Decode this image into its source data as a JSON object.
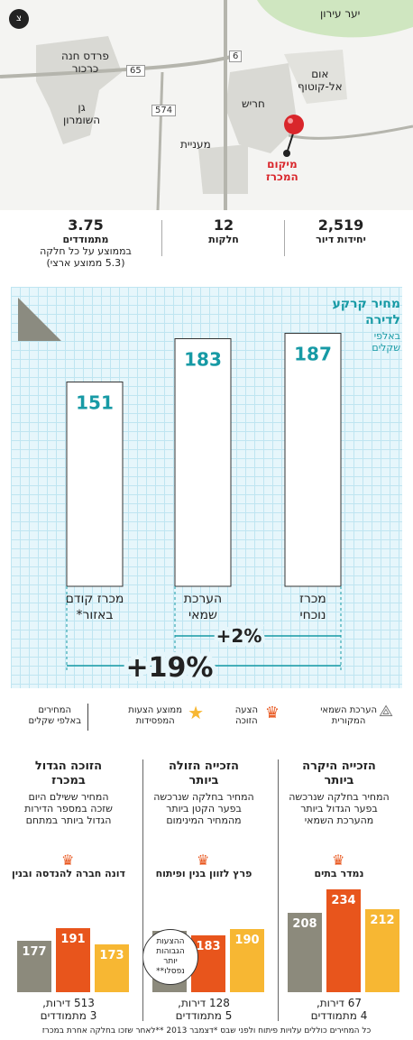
{
  "map": {
    "labels": {
      "forest": "יער עירון",
      "pardes": "פרדס חנה\nכרכור",
      "gan": "גן\nהשומרון",
      "umm": "אום\nאל-קוטוף",
      "harish": "חריש",
      "mania": "מעניית",
      "site": "מיקום\nהמכרז"
    },
    "roads": [
      "65",
      "6",
      "574"
    ]
  },
  "stats": [
    {
      "num": "2,519",
      "label": "יחידות דיור",
      "sub": ""
    },
    {
      "num": "12",
      "label": "חלקות",
      "sub": ""
    },
    {
      "num": "3.75",
      "label": "מתמודדים",
      "sub": "בממוצע על כל חלקה\n(5.3 ממוצע ארצי)"
    }
  ],
  "chart_title": "מחיר קרקע\nלדירה",
  "chart_subtitle": "באלפי\nשקלים",
  "chart_data": {
    "type": "bar",
    "title": "מחיר קרקע לדירה",
    "ylabel": "באלפי שקלים",
    "categories": [
      "מכרז נוכחי",
      "הערכת שמאי",
      "מכרז קודם באזור*"
    ],
    "values": [
      187,
      183,
      151
    ],
    "ylim": [
      0,
      190
    ],
    "annotations": [
      "+2%",
      "+19%"
    ]
  },
  "legend": {
    "appraisal": "הערכת השמאי\nהמקורית",
    "winning": "הצעה\nהזוכה",
    "avg": "ממוצע הצעות\nהמפסידות",
    "unit": "המחירים\nבאלפי שקלים"
  },
  "columns": [
    {
      "title": "הזכייה היקרה\nביותר",
      "desc": "המחיר בחלקה שנרכשה\nבפער הגדול ביותר\nמהערכת השמאי",
      "winner": "נמדר בתים",
      "values": [
        212,
        234,
        208
      ],
      "foot": "67 דירות,\n4 מתמודדים"
    },
    {
      "title": "הזכייה הזולה\nביותר",
      "desc": "המחיר בחלקה שנרכשה\nבפער הקטן ביותר\nמהמחיר המינימום",
      "winner": "פרץ לזוון בנין ופיתוח",
      "values": [
        190,
        183,
        188
      ],
      "foot": "128 דירות,\n5 מתמודדים",
      "note": "ההצעות\nהגבוהות\nיותר\nנפסלו**"
    },
    {
      "title": "הזוכה הגדול\nבמכרז",
      "desc": "המחיר ששילם היום\nשזכה במספר הדירות\nהגדול ביותר במתחם",
      "winner": "דונה חברה להנדסה ובנין",
      "values": [
        173,
        191,
        177
      ],
      "foot": "513 דירות,\n3 מתמודדים"
    }
  ],
  "footer": "כל המחירים כוללים עלויות פיתוח ולפני שבס *דצמבר 2013 **לאחר שזכו בחלקה אחרת במכרז",
  "colors": {
    "teal": "#179aa5",
    "orange": "#e8551c",
    "yellow": "#f7b733",
    "gray": "#8c8a7c"
  }
}
